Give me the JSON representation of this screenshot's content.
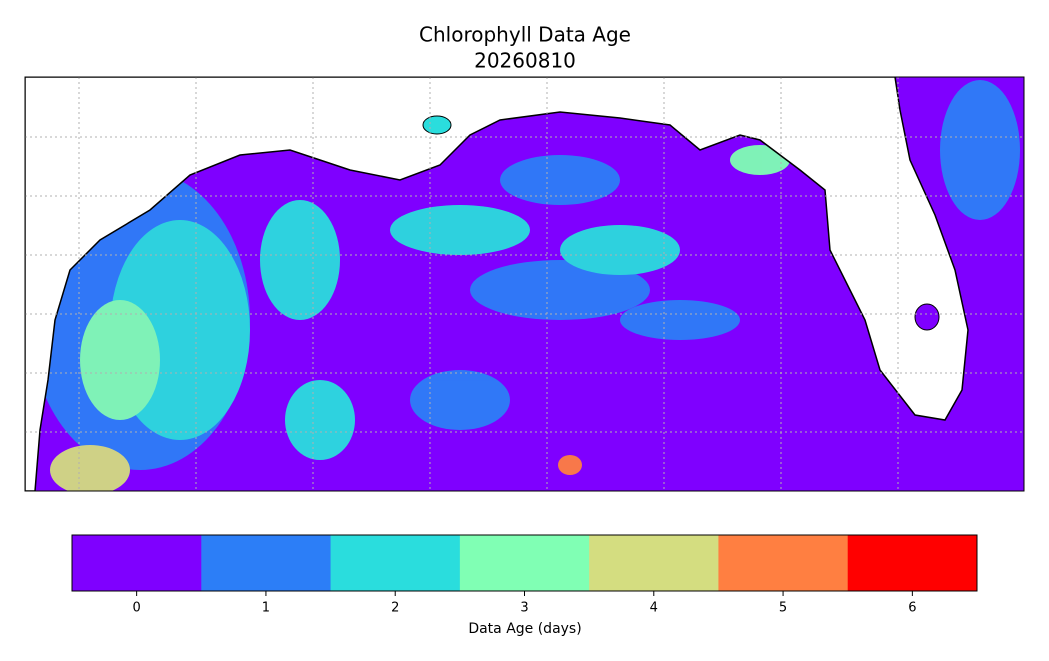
{
  "title": [
    "Chlorophyll Data Age",
    "20260810"
  ],
  "colorbar": {
    "ticks": [
      0,
      1,
      2,
      3,
      4,
      5,
      6
    ],
    "colors": [
      "#7f00ff",
      "#2c7ef7",
      "#2adddd",
      "#80ffb4",
      "#d4dd80",
      "#ff7f41",
      "#ff0000"
    ],
    "label": "Data Age (days)"
  }
}
